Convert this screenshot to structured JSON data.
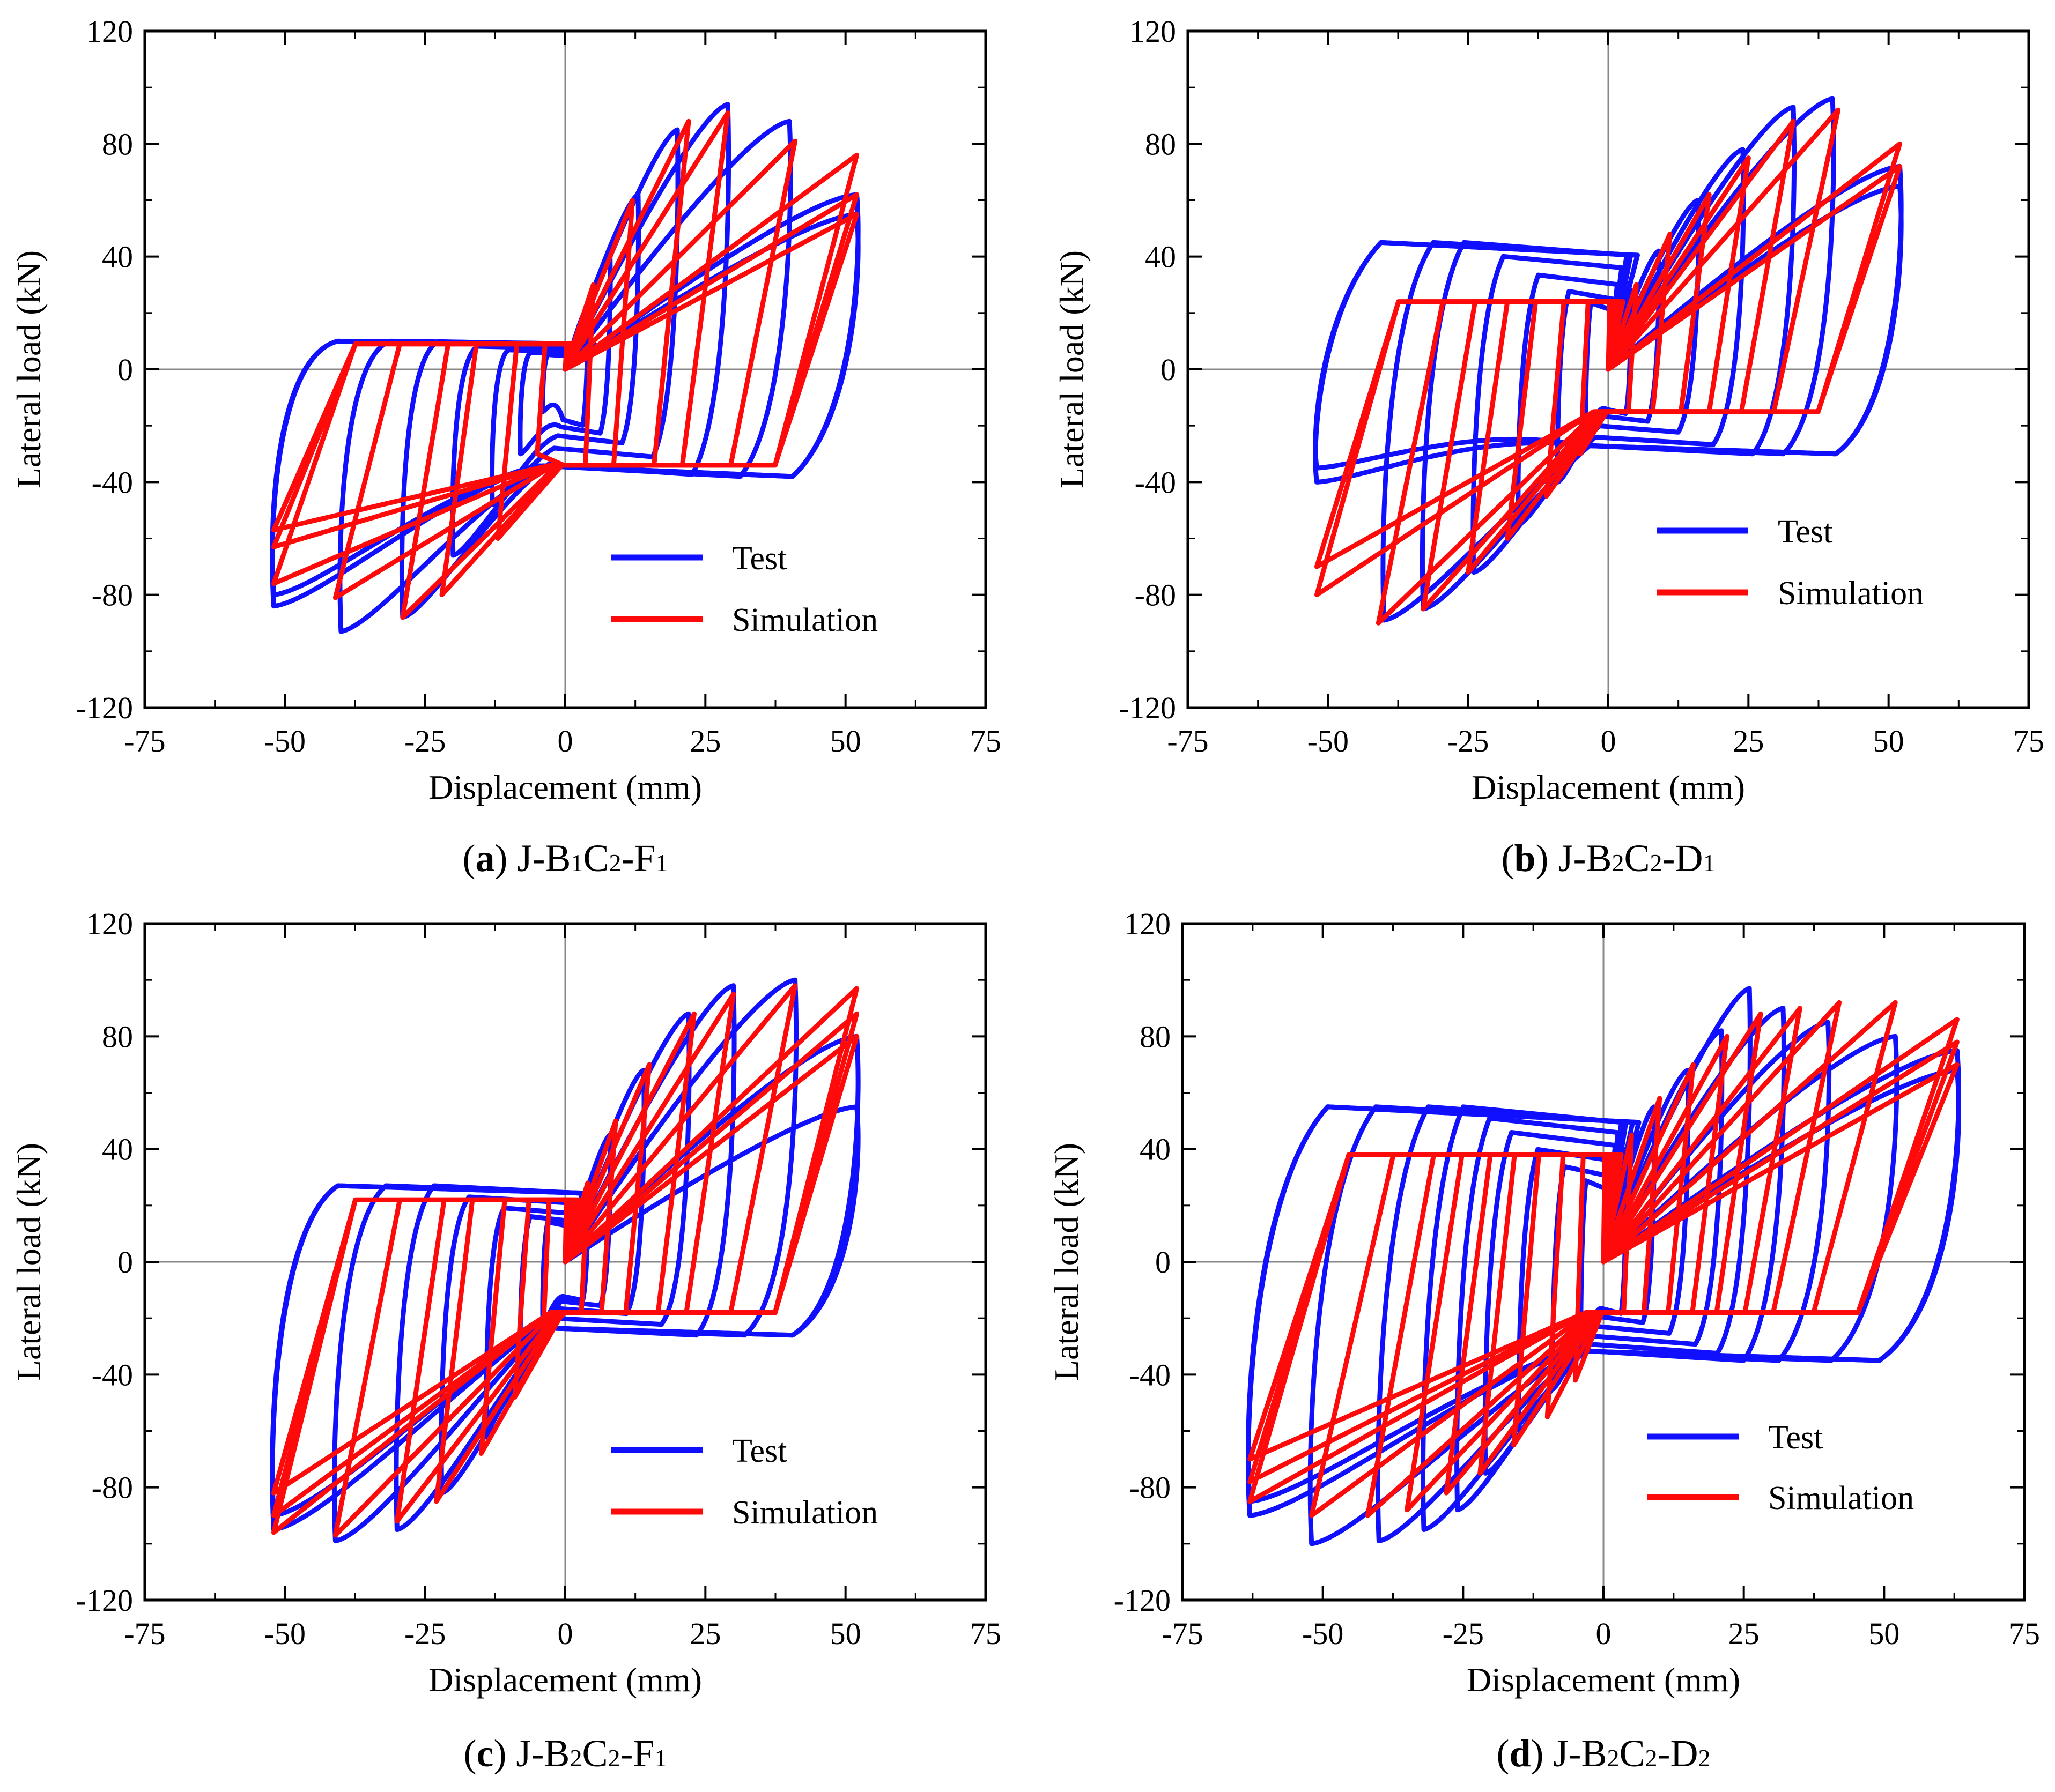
{
  "figure": {
    "colors": {
      "test": "#1010ff",
      "simulation": "#ff0a0a",
      "axis": "#000000",
      "zero_line": "#888888"
    }
  },
  "chart_data": [
    {
      "type": "line",
      "id": "a",
      "caption": {
        "letter": "(a)",
        "specimen": "J-B",
        "b_sub": "1",
        "c": "C",
        "c_sub": "2",
        "tail": "-F",
        "tail_sub": "1"
      },
      "xlabel": "Displacement (mm)",
      "ylabel": "Lateral load (kN)",
      "xlim": [
        -75,
        75
      ],
      "ylim": [
        -120,
        120
      ],
      "xticks": [
        "-75",
        "-50",
        "-25",
        "0",
        "25",
        "50",
        "75"
      ],
      "yticks": [
        "-120",
        "-80",
        "-40",
        "0",
        "40",
        "80",
        "120"
      ],
      "legend": {
        "position": "lower-right",
        "entries": [
          "Test",
          "Simulation"
        ]
      },
      "series": [
        {
          "name": "Test",
          "color": "#1010ff",
          "amplitudes": [
            [
              4,
              22,
              -4,
              -15
            ],
            [
              8,
              40,
              -8,
              -30
            ],
            [
              13,
              62,
              -13,
              -48
            ],
            [
              20,
              85,
              -20,
              -66
            ],
            [
              29,
              94,
              -29,
              -88
            ],
            [
              40,
              88,
              -40,
              -93
            ],
            [
              52,
              62,
              -52,
              -84
            ],
            [
              52,
              55,
              -52,
              -80
            ]
          ],
          "residual": [
            10,
            -38
          ],
          "peak_positive": 94,
          "peak_negative": -93
        },
        {
          "name": "Simulation",
          "color": "#ff0a0a",
          "amplitudes": [
            [
              5,
              30,
              -5,
              -30
            ],
            [
              12,
              60,
              -12,
              -60
            ],
            [
              22,
              88,
              -22,
              -80
            ],
            [
              29,
              91,
              -29,
              -88
            ],
            [
              41,
              81,
              -41,
              -81
            ],
            [
              52,
              76,
              -52,
              -76
            ],
            [
              52,
              62,
              -52,
              -63
            ],
            [
              52,
              55,
              -52,
              -57
            ]
          ],
          "plateau_positive": 9,
          "plateau_negative": -34,
          "peak_positive": 91,
          "peak_negative": -88
        }
      ]
    },
    {
      "type": "line",
      "id": "b",
      "caption": {
        "letter": "(b)",
        "specimen": "J-B",
        "b_sub": "2",
        "c": "C",
        "c_sub": "2",
        "tail": "-D",
        "tail_sub": "1"
      },
      "xlabel": "Displacement (mm)",
      "ylabel": "Lateral load (kN)",
      "xlim": [
        -75,
        75
      ],
      "ylim": [
        -120,
        120
      ],
      "xticks": [
        "-75",
        "-50",
        "-25",
        "0",
        "25",
        "50",
        "75"
      ],
      "yticks": [
        "-120",
        "-80",
        "-40",
        "0",
        "40",
        "80",
        "120"
      ],
      "legend": {
        "position": "right",
        "entries": [
          "Test",
          "Simulation"
        ]
      },
      "series": [
        {
          "name": "Test",
          "color": "#1010ff",
          "amplitudes": [
            [
              4,
              28,
              -4,
              -22
            ],
            [
              9,
              42,
              -9,
              -40
            ],
            [
              16,
              60,
              -16,
              -55
            ],
            [
              24,
              78,
              -24,
              -72
            ],
            [
              33,
              93,
              -33,
              -85
            ],
            [
              40,
              96,
              -40,
              -89
            ],
            [
              52,
              72,
              -52,
              -40
            ],
            [
              52,
              65,
              -52,
              -35
            ]
          ],
          "residual": [
            45,
            -30
          ],
          "peak_positive": 97,
          "peak_negative": -90
        },
        {
          "name": "Simulation",
          "color": "#ff0a0a",
          "amplitudes": [
            [
              5,
              30,
              -5,
              -30
            ],
            [
              11,
              48,
              -11,
              -45
            ],
            [
              18,
              62,
              -18,
              -60
            ],
            [
              25,
              75,
              -25,
              -72
            ],
            [
              33,
              88,
              -33,
              -85
            ],
            [
              41,
              92,
              -41,
              -90
            ],
            [
              52,
              80,
              -52,
              -80
            ],
            [
              52,
              72,
              -52,
              -70
            ]
          ],
          "plateau_positive": 24,
          "plateau_negative": -15,
          "peak_positive": 92,
          "peak_negative": -90
        }
      ]
    },
    {
      "type": "line",
      "id": "c",
      "caption": {
        "letter": "(c)",
        "specimen": "J-B",
        "b_sub": "2",
        "c": "C",
        "c_sub": "2",
        "tail": "-F",
        "tail_sub": "1"
      },
      "xlabel": "Displacement (mm)",
      "ylabel": "Lateral load (kN)",
      "xlim": [
        -75,
        75
      ],
      "ylim": [
        -120,
        120
      ],
      "xticks": [
        "-75",
        "-50",
        "-25",
        "0",
        "25",
        "50",
        "75"
      ],
      "yticks": [
        "-120",
        "-80",
        "-40",
        "0",
        "40",
        "80",
        "120"
      ],
      "legend": {
        "position": "lower-right",
        "entries": [
          "Test",
          "Simulation"
        ]
      },
      "series": [
        {
          "name": "Test",
          "color": "#1010ff",
          "amplitudes": [
            [
              4,
              25,
              -4,
              -22
            ],
            [
              8,
              45,
              -8,
              -40
            ],
            [
              14,
              68,
              -14,
              -62
            ],
            [
              22,
              88,
              -22,
              -82
            ],
            [
              30,
              98,
              -30,
              -95
            ],
            [
              41,
              100,
              -41,
              -99
            ],
            [
              52,
              80,
              -52,
              -95
            ],
            [
              52,
              55,
              -52,
              -90
            ]
          ],
          "residual": [
            27,
            -26
          ],
          "peak_positive": 100,
          "peak_negative": -99
        },
        {
          "name": "Simulation",
          "color": "#ff0a0a",
          "amplitudes": [
            [
              4,
              28,
              -4,
              -28
            ],
            [
              9,
              50,
              -9,
              -48
            ],
            [
              15,
              70,
              -15,
              -68
            ],
            [
              23,
              88,
              -23,
              -85
            ],
            [
              30,
              95,
              -30,
              -92
            ],
            [
              41,
              98,
              -41,
              -97
            ],
            [
              52,
              97,
              -52,
              -96
            ],
            [
              52,
              88,
              -52,
              -90
            ],
            [
              52,
              80,
              -52,
              -82
            ]
          ],
          "plateau_positive": 22,
          "plateau_negative": -18,
          "peak_positive": 98,
          "peak_negative": -97
        }
      ]
    },
    {
      "type": "line",
      "id": "d",
      "caption": {
        "letter": "(d)",
        "specimen": "J-B",
        "b_sub": "2",
        "c": "C",
        "c_sub": "2",
        "tail": "-D",
        "tail_sub": "2"
      },
      "xlabel": "Displacement (mm)",
      "ylabel": "Lateral load (kN)",
      "xlim": [
        -75,
        75
      ],
      "ylim": [
        -120,
        120
      ],
      "xticks": [
        "-75",
        "-50",
        "-25",
        "0",
        "25",
        "50",
        "75"
      ],
      "yticks": [
        "-120",
        "-80",
        "-40",
        "0",
        "40",
        "80",
        "120"
      ],
      "legend": {
        "position": "lower-right",
        "entries": [
          "Test",
          "Simulation"
        ]
      },
      "series": [
        {
          "name": "Test",
          "color": "#1010ff",
          "amplitudes": [
            [
              4,
              40,
              -4,
              -30
            ],
            [
              9,
              55,
              -9,
              -45
            ],
            [
              15,
              68,
              -15,
              -60
            ],
            [
              21,
              82,
              -21,
              -75
            ],
            [
              26,
              97,
              -26,
              -88
            ],
            [
              32,
              90,
              -32,
              -95
            ],
            [
              40,
              85,
              -40,
              -99
            ],
            [
              52,
              80,
              -52,
              -100
            ],
            [
              63,
              75,
              -63,
              -90
            ],
            [
              63,
              68,
              -63,
              -85
            ]
          ],
          "residual": [
            55,
            -35
          ],
          "peak_positive": 97,
          "peak_negative": -100
        },
        {
          "name": "Simulation",
          "color": "#ff0a0a",
          "amplitudes": [
            [
              5,
              45,
              -5,
              -42
            ],
            [
              10,
              58,
              -10,
              -55
            ],
            [
              16,
              70,
              -16,
              -65
            ],
            [
              22,
              80,
              -22,
              -75
            ],
            [
              28,
              88,
              -28,
              -82
            ],
            [
              35,
              90,
              -35,
              -88
            ],
            [
              42,
              92,
              -42,
              -90
            ],
            [
              52,
              92,
              -52,
              -90
            ],
            [
              63,
              86,
              -63,
              -85
            ],
            [
              63,
              78,
              -63,
              -78
            ],
            [
              63,
              70,
              -63,
              -70
            ]
          ],
          "plateau_positive": 38,
          "plateau_negative": -18,
          "peak_positive": 92,
          "peak_negative": -90
        }
      ]
    }
  ]
}
